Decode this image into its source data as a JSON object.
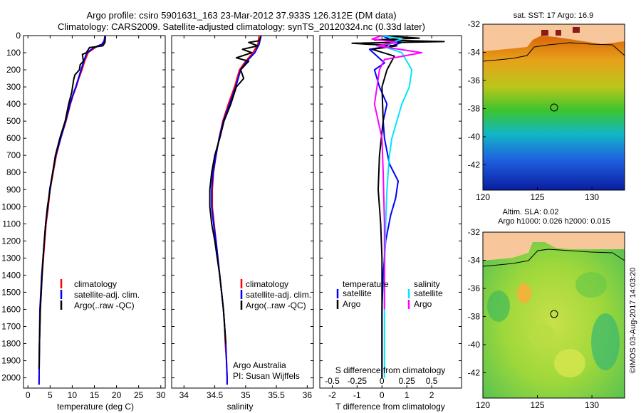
{
  "header": {
    "line1": "Argo profile: csiro 5901631_163 23-Mar-2012 37.933S 126.312E (DM data)",
    "line2": "Climatology: CARS2009. Satellite-adjusted climatology: synTS_20120324.nc (0.33d later)"
  },
  "colors": {
    "climatology": "#ff0000",
    "satellite": "#0000ff",
    "argo": "#000000",
    "sal_satellite": "#00e5ff",
    "sal_argo": "#ff00ff",
    "land": "#f7c79b"
  },
  "depth_axis": {
    "ticks": [
      0,
      100,
      200,
      300,
      400,
      500,
      600,
      700,
      800,
      900,
      1000,
      1100,
      1200,
      1300,
      1400,
      1500,
      1600,
      1700,
      1800,
      1900,
      2000
    ],
    "range": [
      0,
      2060
    ]
  },
  "chart_data": [
    {
      "type": "line",
      "id": "temperature",
      "xlabel": "temperature (deg C)",
      "xlim": [
        -1,
        31
      ],
      "xticks": [
        0,
        5,
        10,
        15,
        20,
        25,
        30
      ],
      "ylim": [
        0,
        2060
      ],
      "legend": [
        "climatology",
        "satellite-adj. clim.",
        "Argo(..raw -QC)"
      ],
      "legend_placement": "lower-middle",
      "series": [
        {
          "name": "climatology",
          "color": "#ff0000",
          "x": [
            17.5,
            17.3,
            16.8,
            15.2,
            13.6,
            12.8,
            12.2,
            11.5,
            10.9,
            10.2,
            9.6,
            8.6,
            7.4,
            6.4,
            5.7,
            5.0,
            4.6,
            4.1,
            3.8,
            3.5,
            3.2,
            3.0,
            2.8,
            2.6,
            2.5
          ],
          "y": [
            0,
            30,
            50,
            70,
            100,
            150,
            200,
            250,
            300,
            350,
            400,
            500,
            600,
            700,
            800,
            900,
            1000,
            1100,
            1200,
            1300,
            1400,
            1500,
            1600,
            1800,
            2040
          ]
        },
        {
          "name": "satellite-adj. clim.",
          "color": "#0000ff",
          "x": [
            17.4,
            17.2,
            16.7,
            14.9,
            13.3,
            12.6,
            12.0,
            11.4,
            10.8,
            10.1,
            9.5,
            8.5,
            7.4,
            6.3,
            5.6,
            4.9,
            4.5,
            4.0,
            3.7,
            3.4,
            3.1,
            2.9,
            2.7,
            2.6,
            2.5
          ],
          "y": [
            0,
            30,
            50,
            70,
            100,
            150,
            200,
            250,
            300,
            350,
            400,
            500,
            600,
            700,
            800,
            900,
            1000,
            1100,
            1200,
            1300,
            1400,
            1500,
            1600,
            1800,
            2040
          ]
        },
        {
          "name": "Argo(..raw -QC)",
          "color": "#000000",
          "x": [
            17.5,
            17.4,
            16.9,
            13.9,
            13.2,
            12.3,
            12.5,
            11.8,
            11.6,
            10.6,
            10.3,
            9.9,
            9.2,
            8.4,
            7.2,
            6.2,
            5.6,
            5.0,
            4.4,
            4.0,
            3.7,
            3.4,
            3.2,
            3.0,
            2.8,
            2.6,
            2.5
          ],
          "y": [
            5,
            40,
            60,
            70,
            100,
            110,
            150,
            170,
            200,
            230,
            260,
            330,
            400,
            500,
            600,
            700,
            800,
            900,
            1000,
            1100,
            1200,
            1300,
            1400,
            1500,
            1600,
            1800,
            1950
          ]
        }
      ]
    },
    {
      "type": "line",
      "id": "salinity",
      "xlabel": "salinity",
      "xlim": [
        33.8,
        36.1
      ],
      "xticks": [
        34,
        34.5,
        35,
        35.5,
        36
      ],
      "xtick_labels": [
        "34",
        "34.5",
        "35",
        "35.5",
        "36"
      ],
      "ylim": [
        0,
        2060
      ],
      "legend": [
        "climatology",
        "satellite-adj. clim.",
        "Argo(..raw -QC)"
      ],
      "legend_placement": "lower-right",
      "annotation": [
        "Argo Australia",
        "PI: Susan Wijffels"
      ],
      "series": [
        {
          "name": "climatology",
          "color": "#ff0000",
          "x": [
            35.22,
            35.2,
            35.12,
            35.0,
            34.9,
            34.82,
            34.72,
            34.63,
            34.57,
            34.52,
            34.48,
            34.46,
            34.46,
            34.49,
            34.52,
            34.55,
            34.58,
            34.61,
            34.64,
            34.66,
            34.67,
            34.69,
            34.7,
            34.7
          ],
          "y": [
            0,
            50,
            100,
            150,
            200,
            300,
            400,
            500,
            600,
            700,
            800,
            900,
            1000,
            1100,
            1200,
            1300,
            1400,
            1500,
            1600,
            1700,
            1800,
            1900,
            2000,
            2040
          ]
        },
        {
          "name": "satellite-adj. clim.",
          "color": "#0000ff",
          "x": [
            35.25,
            35.22,
            35.15,
            35.02,
            34.92,
            34.84,
            34.74,
            34.64,
            34.57,
            34.52,
            34.47,
            34.45,
            34.45,
            34.48,
            34.52,
            34.55,
            34.58,
            34.61,
            34.64,
            34.66,
            34.68,
            34.69,
            34.7,
            34.7
          ],
          "y": [
            0,
            50,
            100,
            150,
            200,
            300,
            400,
            500,
            600,
            700,
            800,
            900,
            1000,
            1100,
            1200,
            1300,
            1400,
            1500,
            1600,
            1700,
            1800,
            1900,
            2000,
            2040
          ]
        },
        {
          "name": "Argo(..raw -QC)",
          "color": "#000000",
          "x": [
            35.25,
            35.22,
            35.05,
            35.2,
            34.95,
            35.1,
            34.85,
            35.05,
            34.92,
            34.97,
            34.85,
            34.76,
            34.65,
            34.58,
            34.5,
            34.45,
            34.42,
            34.42,
            34.45,
            34.5,
            34.54,
            34.58,
            34.61,
            34.64,
            34.66,
            34.68
          ],
          "y": [
            5,
            30,
            40,
            60,
            80,
            100,
            130,
            150,
            200,
            250,
            300,
            400,
            500,
            600,
            700,
            800,
            900,
            1000,
            1100,
            1200,
            1300,
            1400,
            1500,
            1600,
            1700,
            1800
          ]
        }
      ]
    },
    {
      "type": "line",
      "id": "difference",
      "xlabel": "T difference from climatology",
      "xlim": [
        -2.5,
        3.2
      ],
      "xticks": [
        -2,
        -1,
        0,
        1,
        2
      ],
      "top_xlabel": "S difference from climatology",
      "top_xticks": [
        -0.5,
        -0.25,
        0,
        0.25,
        0.5
      ],
      "top_xtick_labels": [
        "-0.5",
        "-0.25",
        "0",
        "0.25",
        "0.5"
      ],
      "ylim": [
        0,
        2060
      ],
      "legend_titles": [
        "temperature",
        "salinity"
      ],
      "legend": [
        "satellite",
        "Argo",
        "satellite",
        "Argo"
      ],
      "series": [
        {
          "name": "satellite",
          "color": "#0000ff",
          "x": [
            0,
            0.3,
            0.8,
            0.4,
            -0.5,
            -0.2,
            0.1,
            -0.3,
            -0.1,
            0.2,
            0.05,
            0.1,
            0.3,
            0.65,
            0.55,
            0.35,
            0.15,
            0.05,
            0.0,
            0.0,
            0.0
          ],
          "y": [
            0,
            20,
            40,
            60,
            80,
            120,
            160,
            200,
            300,
            400,
            500,
            600,
            750,
            850,
            950,
            1050,
            1200,
            1400,
            1600,
            1800,
            2000
          ]
        },
        {
          "name": "Argo",
          "color": "#000000",
          "x": [
            0,
            1.5,
            -0.3,
            2.5,
            -1.2,
            0.6,
            -0.4,
            0.5,
            0.2,
            0.0,
            0.05,
            -0.1,
            -0.15,
            -0.05,
            0.0,
            0.0,
            0.0
          ],
          "y": [
            0,
            15,
            25,
            35,
            45,
            60,
            80,
            120,
            200,
            300,
            500,
            700,
            900,
            1100,
            1300,
            1600,
            2000
          ]
        },
        {
          "name": "salinity satellite",
          "color": "#00e5ff",
          "x": [
            0,
            0.8,
            0.4,
            0.2,
            0.8,
            1.0,
            1.2,
            1.1,
            0.8,
            0.6,
            0.4,
            0.3,
            0.2,
            0.15,
            0.1,
            0.1
          ],
          "y": [
            0,
            20,
            40,
            70,
            100,
            150,
            200,
            300,
            400,
            500,
            600,
            700,
            900,
            1100,
            1400,
            2000
          ]
        },
        {
          "name": "salinity Argo",
          "color": "#ff00ff",
          "x": [
            0,
            -0.4,
            0.6,
            -0.2,
            1.6,
            0.1,
            -0.1,
            -0.2,
            -0.3,
            0.0,
            0.05,
            0.1,
            0.1
          ],
          "y": [
            0,
            20,
            40,
            60,
            100,
            140,
            200,
            300,
            400,
            600,
            800,
            1100,
            1600
          ]
        }
      ]
    }
  ],
  "maps": {
    "sst": {
      "title": "sat. SST: 17 Argo: 16.9",
      "lat_ticks": [
        -32,
        -34,
        -36,
        -38,
        -40,
        -42
      ],
      "lon_ticks": [
        120,
        125,
        130
      ]
    },
    "sla": {
      "title1": "Altim. SLA: 0.02",
      "title2": "Argo h1000: 0.026 h2000: 0.015",
      "lat_ticks": [
        -32,
        -34,
        -36,
        -38,
        -40,
        -42
      ],
      "lon_ticks": [
        120,
        125,
        130
      ]
    }
  },
  "credit": "©IMOS 03-Aug-2017 14:03:20"
}
